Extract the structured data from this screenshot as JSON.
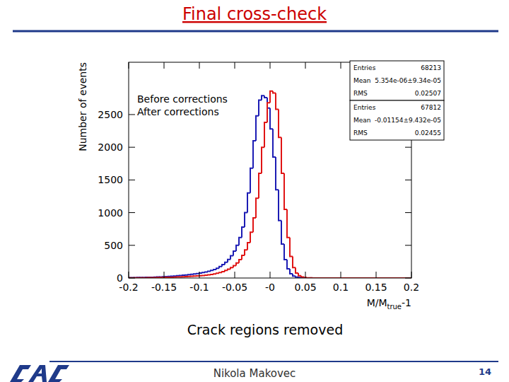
{
  "slide": {
    "title": "Final cross-check",
    "caption": "Crack regions removed",
    "author": "Nikola Makovec",
    "page": "14"
  },
  "chart_data": {
    "type": "histogram",
    "y_label": "Number of events",
    "x_label": [
      "M/M",
      "true",
      "-1"
    ],
    "legend": "top-left",
    "xlim": [
      -0.2,
      0.2
    ],
    "xticks": [
      -0.2,
      -0.15,
      -0.1,
      -0.05,
      {
        "value": 0,
        "label": "-0"
      },
      0.05,
      0.1,
      0.15,
      0.2
    ],
    "ylim": [
      0,
      3300
    ],
    "yticks": [
      0,
      500,
      1000,
      1500,
      2000,
      2500
    ],
    "bins": [
      -0.2,
      -0.196,
      -0.192,
      -0.188,
      -0.184,
      -0.18,
      -0.176,
      -0.172,
      -0.168,
      -0.164,
      -0.16,
      -0.156,
      -0.152,
      -0.148,
      -0.144,
      -0.14,
      -0.136,
      -0.132,
      -0.128,
      -0.124,
      -0.12,
      -0.116,
      -0.112,
      -0.108,
      -0.104,
      -0.1,
      -0.096,
      -0.092,
      -0.088,
      -0.084,
      -0.08,
      -0.076,
      -0.072,
      -0.068,
      -0.064,
      -0.06,
      -0.056,
      -0.052,
      -0.048,
      -0.044,
      -0.04,
      -0.036,
      -0.032,
      -0.028,
      -0.024,
      -0.02,
      -0.016,
      -0.012,
      -0.008,
      -0.004,
      0,
      0.004,
      0.008,
      0.012,
      0.016,
      0.02,
      0.024,
      0.028,
      0.032,
      0.036,
      0.04,
      0.044,
      0.048,
      0.052,
      0.056,
      0.06,
      0.064,
      0.068,
      0.072,
      0.076,
      0.08,
      0.084,
      0.088,
      0.092,
      0.096,
      0.1,
      0.104,
      0.108,
      0.112,
      0.116,
      0.12,
      0.124,
      0.128,
      0.132,
      0.136,
      0.14,
      0.144,
      0.148,
      0.152,
      0.156,
      0.16,
      0.164,
      0.168,
      0.172,
      0.176,
      0.18,
      0.184,
      0.188,
      0.192,
      0.196,
      0.2
    ],
    "series": [
      {
        "name": "Before corrections",
        "color": "#1c1cb4",
        "values": [
          5,
          5,
          6,
          7,
          8,
          9,
          10,
          11,
          12,
          14,
          15,
          17,
          19,
          21,
          24,
          27,
          30,
          34,
          38,
          42,
          47,
          52,
          57,
          62,
          68,
          75,
          83,
          92,
          102,
          115,
          130,
          150,
          175,
          205,
          240,
          285,
          340,
          410,
          500,
          620,
          780,
          1000,
          1300,
          1680,
          2100,
          2480,
          2720,
          2790,
          2760,
          2600,
          2280,
          1850,
          1350,
          880,
          520,
          280,
          140,
          65,
          30,
          14,
          7,
          4,
          2,
          1,
          1,
          0,
          0,
          0,
          0,
          0,
          0,
          0,
          0,
          0,
          0,
          0,
          0,
          0,
          0,
          0,
          0,
          0,
          0,
          0,
          0,
          0,
          0,
          0,
          0,
          0,
          0,
          0,
          0,
          0,
          0,
          0,
          0,
          0,
          0,
          0
        ]
      },
      {
        "name": "After corrections",
        "color": "#e01414",
        "values": [
          2,
          2,
          3,
          3,
          3,
          4,
          4,
          5,
          5,
          6,
          7,
          8,
          9,
          10,
          11,
          12,
          14,
          15,
          17,
          19,
          21,
          23,
          26,
          29,
          32,
          35,
          39,
          44,
          49,
          55,
          62,
          72,
          84,
          98,
          115,
          135,
          160,
          190,
          230,
          280,
          345,
          430,
          540,
          700,
          920,
          1220,
          1600,
          2000,
          2380,
          2680,
          2860,
          2830,
          2580,
          2150,
          1600,
          1050,
          620,
          330,
          160,
          75,
          35,
          16,
          8,
          4,
          2,
          1,
          0,
          0,
          0,
          0,
          0,
          0,
          0,
          0,
          0,
          0,
          0,
          0,
          0,
          0,
          0,
          0,
          0,
          0,
          0,
          0,
          0,
          0,
          0,
          0,
          0,
          0,
          0,
          0,
          0,
          0,
          0,
          0,
          0,
          0
        ]
      }
    ],
    "stats_labels": [
      "Entries",
      "Mean",
      "RMS"
    ],
    "stats": [
      {
        "entries": 68213,
        "mean": "5.354e-06±9.34e-05",
        "rms": 0.02507
      },
      {
        "entries": 67812,
        "mean": "-0.01154±9.432e-05",
        "rms": 0.02455
      }
    ]
  }
}
